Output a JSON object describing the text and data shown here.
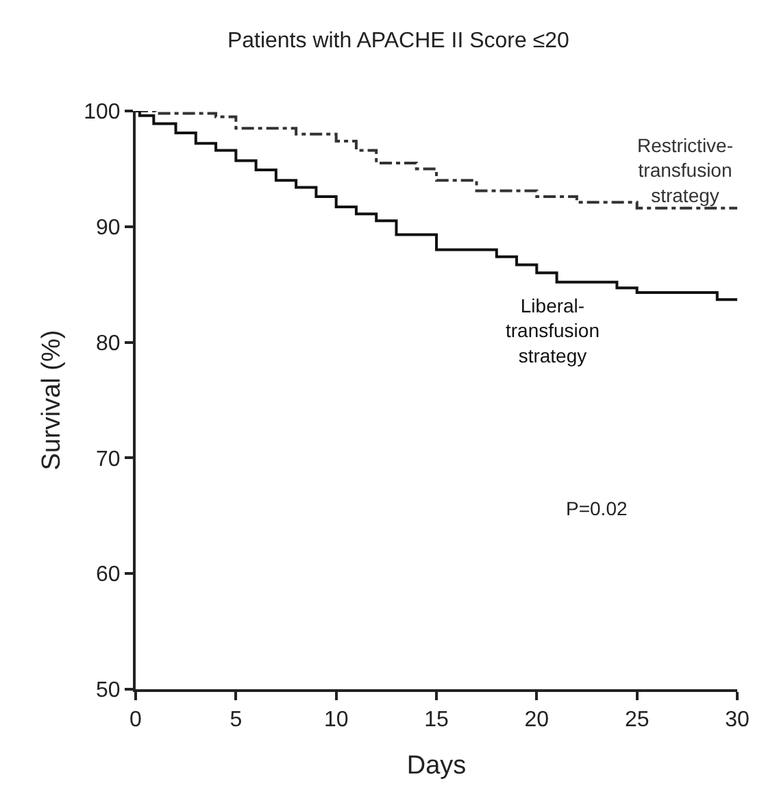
{
  "chart_data": {
    "type": "step",
    "title": "Patients with APACHE II Score ≤20",
    "xlabel": "Days",
    "ylabel": "Survival (%)",
    "series": [
      {
        "name": "Restrictive-\ntransfusion\nstrategy",
        "color": "#333333",
        "line_style": "dashed",
        "x": [
          0,
          1,
          4,
          5,
          8,
          10,
          11,
          12,
          14,
          15,
          17,
          20,
          22,
          25,
          30
        ],
        "values": [
          100,
          99.8,
          99.5,
          98.5,
          98.0,
          97.4,
          96.6,
          95.5,
          95.0,
          94.0,
          93.1,
          92.6,
          92.1,
          91.6,
          91.6
        ]
      },
      {
        "name": "Liberal-\ntransfusion\nstrategy",
        "color": "#111111",
        "line_style": "solid",
        "x": [
          0,
          0.2,
          0.9,
          2,
          3,
          4,
          5,
          6,
          7,
          8,
          9,
          10,
          11,
          12,
          13,
          15,
          18,
          19,
          20,
          21,
          24,
          25,
          29,
          30
        ],
        "values": [
          100,
          99.6,
          98.9,
          98.1,
          97.2,
          96.6,
          95.7,
          94.9,
          94.0,
          93.4,
          92.6,
          91.7,
          91.1,
          90.5,
          89.3,
          88.0,
          87.4,
          86.7,
          86.0,
          85.2,
          84.7,
          84.3,
          83.7,
          83.7
        ]
      }
    ],
    "annotations": [
      "P=0.02"
    ],
    "xlim": [
      0,
      30
    ],
    "ylim": [
      50,
      100
    ],
    "xticks": [
      0,
      5,
      10,
      15,
      20,
      25,
      30
    ],
    "yticks": [
      50,
      60,
      70,
      80,
      90,
      100
    ],
    "legend": false,
    "marker": "none"
  }
}
